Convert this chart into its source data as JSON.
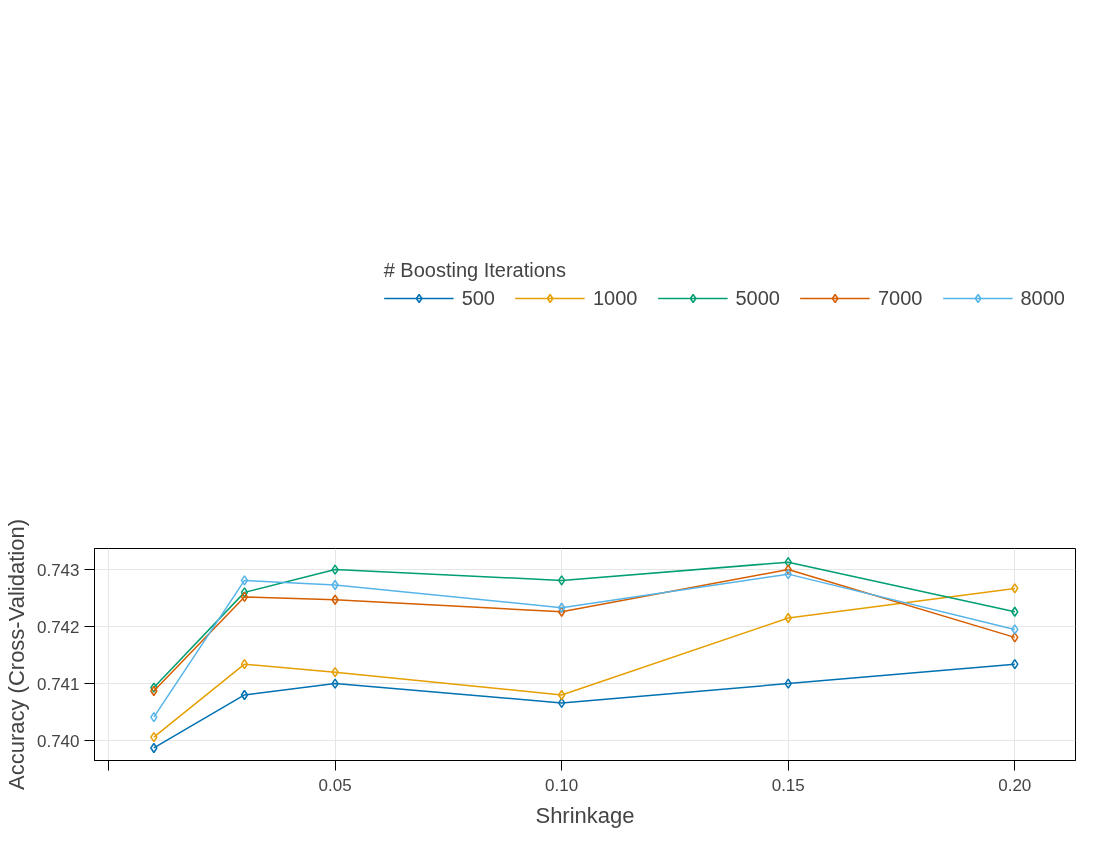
{
  "chart_data": {
    "type": "line",
    "legend_title": "# Boosting Iterations",
    "xlabel": "Shrinkage",
    "ylabel": "Accuracy (Cross-Validation)",
    "x": [
      0.01,
      0.03,
      0.05,
      0.1,
      0.15,
      0.2
    ],
    "series": [
      {
        "name": "500",
        "color": "#0072b2",
        "values": [
          0.73987,
          0.7408,
          0.741,
          0.74066,
          0.741,
          0.74134
        ]
      },
      {
        "name": "1000",
        "color": "#e69f00",
        "values": [
          0.74006,
          0.74134,
          0.7412,
          0.7408,
          0.74215,
          0.74267
        ]
      },
      {
        "name": "5000",
        "color": "#009e73",
        "values": [
          0.74093,
          0.7426,
          0.743,
          0.74281,
          0.74313,
          0.74226
        ]
      },
      {
        "name": "7000",
        "color": "#d55e00",
        "values": [
          0.74087,
          0.74252,
          0.74247,
          0.74226,
          0.743,
          0.74181
        ]
      },
      {
        "name": "8000",
        "color": "#56b4e9",
        "values": [
          0.74041,
          0.74281,
          0.74273,
          0.74233,
          0.74292,
          0.74195
        ]
      }
    ],
    "xlim": [
      -0.0031,
      0.2134
    ],
    "ylim": [
      0.73965,
      0.74337
    ],
    "xticks": [
      {
        "value": 0,
        "label": null
      },
      0.05,
      {
        "value": 0.1,
        "label": "0.10"
      },
      0.15,
      {
        "value": 0.2,
        "label": "0.20"
      }
    ],
    "yticks": [
      {
        "value": 0.74,
        "label": "0.740"
      },
      0.741,
      0.742,
      0.743
    ],
    "grid": true,
    "legend": "top",
    "marker": "diamond",
    "line_style": "solid"
  }
}
